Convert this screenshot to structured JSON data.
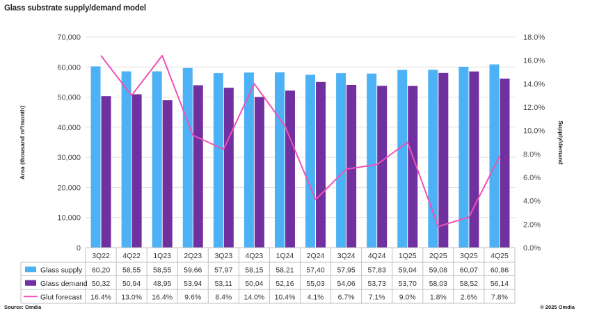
{
  "title": "Glass substrate supply/demand model",
  "source": "Source: Omdia",
  "copyright": "© 2025 Omdia",
  "colors": {
    "supply": "#4DB1F5",
    "demand": "#7030A0",
    "glut": "#F051B4",
    "grid": "#E0E0E0",
    "table_border": "#BFBFBF"
  },
  "chart_data": {
    "type": "bar",
    "categories": [
      "3Q22",
      "4Q22",
      "1Q23",
      "2Q23",
      "3Q23",
      "4Q23",
      "1Q24",
      "2Q24",
      "3Q24",
      "4Q24",
      "1Q25",
      "2Q25",
      "3Q25",
      "4Q25"
    ],
    "ylabel": "Area (thousand m²/month)",
    "y2label": "Supply/demand",
    "ylim": [
      0,
      70000
    ],
    "y2lim": [
      0,
      0.18
    ],
    "yticks": [
      "0",
      "10,000",
      "20,000",
      "30,000",
      "40,000",
      "50,000",
      "60,000",
      "70,000"
    ],
    "y2ticks": [
      "0.0%",
      "2.0%",
      "4.0%",
      "6.0%",
      "8.0%",
      "10.0%",
      "12.0%",
      "14.0%",
      "16.0%",
      "18.0%"
    ],
    "grid": true,
    "legend": "data-table",
    "series": [
      {
        "name": "Glass supply",
        "kind": "bar",
        "axis": "left",
        "values": [
          60200,
          58550,
          58550,
          59660,
          57970,
          58150,
          58210,
          57400,
          57950,
          57830,
          59040,
          59080,
          60070,
          60860
        ],
        "labels": [
          "60,20",
          "58,55",
          "58,55",
          "59,66",
          "57,97",
          "58,15",
          "58,21",
          "57,40",
          "57,95",
          "57,83",
          "59,04",
          "59,08",
          "60,07",
          "60,86"
        ]
      },
      {
        "name": "Glass demand",
        "kind": "bar",
        "axis": "left",
        "values": [
          50320,
          50940,
          48950,
          53940,
          53110,
          50040,
          52160,
          55030,
          54060,
          53730,
          53700,
          58030,
          58520,
          56140
        ],
        "labels": [
          "50,32",
          "50,94",
          "48,95",
          "53,94",
          "53,11",
          "50,04",
          "52,16",
          "55,03",
          "54,06",
          "53,73",
          "53,70",
          "58,03",
          "58,52",
          "56,14"
        ]
      },
      {
        "name": "Glut forecast",
        "kind": "line",
        "axis": "right",
        "values": [
          0.164,
          0.13,
          0.164,
          0.096,
          0.084,
          0.14,
          0.104,
          0.041,
          0.067,
          0.071,
          0.09,
          0.018,
          0.026,
          0.078
        ],
        "labels": [
          "16.4%",
          "13.0%",
          "16.4%",
          "9.6%",
          "8.4%",
          "14.0%",
          "10.4%",
          "4.1%",
          "6.7%",
          "7.1%",
          "9.0%",
          "1.8%",
          "2.6%",
          "7.8%"
        ]
      }
    ]
  }
}
